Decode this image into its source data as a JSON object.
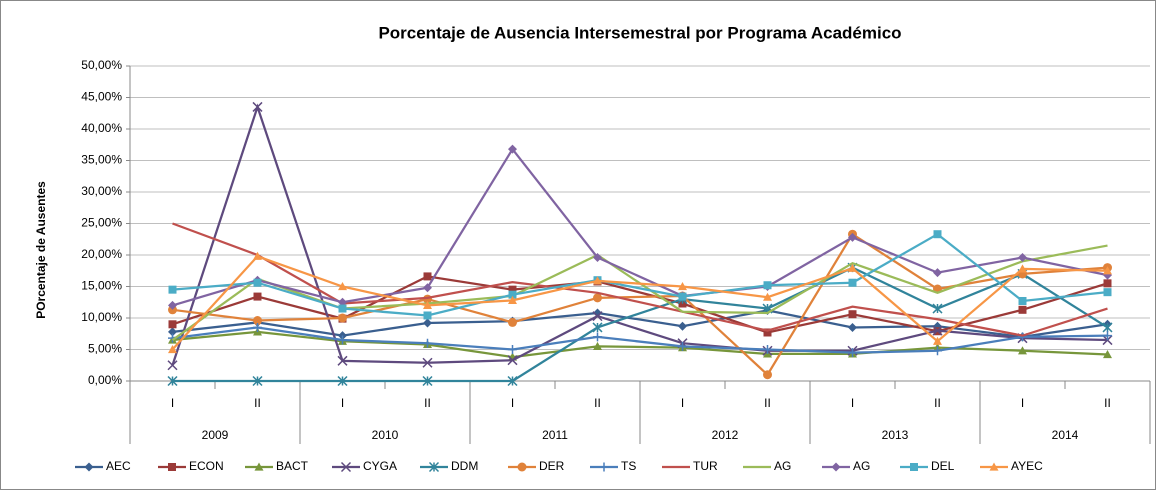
{
  "chart_data": {
    "type": "line",
    "title": "Porcentaje de Ausencia Intersemestral por Programa Académico",
    "y_label": "POrcentaje de Ausentes",
    "categories": [
      "I",
      "II",
      "I",
      "II",
      "I",
      "II",
      "I",
      "II",
      "I",
      "II",
      "I",
      "II"
    ],
    "groups": [
      "2009",
      "2010",
      "2011",
      "2012",
      "2013",
      "2014"
    ],
    "ylim": [
      0,
      50
    ],
    "yticks": [
      {
        "value": 0,
        "label": "0,00%"
      },
      {
        "value": 5,
        "label": "5,00%"
      },
      {
        "value": 10,
        "label": "10,00%"
      },
      {
        "value": 15,
        "label": "15,00%"
      },
      {
        "value": 20,
        "label": "20,00%"
      },
      {
        "value": 25,
        "label": "25,00%"
      },
      {
        "value": 30,
        "label": "30,00%"
      },
      {
        "value": 35,
        "label": "35,00%"
      },
      {
        "value": 40,
        "label": "40,00%"
      },
      {
        "value": 45,
        "label": "45,00%"
      },
      {
        "value": 50,
        "label": "50,00%"
      }
    ],
    "grid": true,
    "legend": "bottom",
    "series": [
      {
        "name": "AEC",
        "color": "#3a5f8f",
        "marker": "diamond",
        "values": [
          7.8,
          9.3,
          7.2,
          9.2,
          9.5,
          10.8,
          8.7,
          11.2,
          8.5,
          8.7,
          7.0,
          9.0
        ]
      },
      {
        "name": "ECON",
        "color": "#9b3a38",
        "marker": "square",
        "values": [
          9.0,
          13.4,
          9.9,
          16.6,
          14.5,
          15.8,
          12.3,
          7.7,
          10.6,
          7.9,
          11.3,
          15.5
        ]
      },
      {
        "name": "BACT",
        "color": "#77963b",
        "marker": "triangle",
        "values": [
          6.5,
          7.8,
          6.3,
          5.8,
          3.8,
          5.5,
          5.3,
          4.3,
          4.3,
          5.3,
          4.8,
          4.2
        ]
      },
      {
        "name": "CYGA",
        "color": "#5e4a7e",
        "marker": "x",
        "values": [
          2.5,
          43.5,
          3.2,
          2.9,
          3.3,
          10.3,
          6.0,
          4.8,
          4.8,
          8.0,
          6.8,
          6.5
        ]
      },
      {
        "name": "DDM",
        "color": "#31849b",
        "marker": "star",
        "values": [
          0,
          0,
          0,
          0,
          0,
          8.5,
          13.0,
          11.5,
          18.0,
          11.5,
          17.0,
          8.5
        ]
      },
      {
        "name": "DER",
        "color": "#e0823a",
        "marker": "circle",
        "values": [
          11.3,
          9.6,
          10.0,
          13.0,
          9.3,
          13.2,
          13.5,
          1.0,
          23.3,
          14.6,
          17.0,
          18.0
        ]
      },
      {
        "name": "TS",
        "color": "#4a7ebb",
        "marker": "plus",
        "values": [
          6.8,
          8.5,
          6.5,
          6.0,
          5.0,
          7.0,
          5.5,
          5.0,
          4.5,
          4.8,
          7.0,
          7.2
        ]
      },
      {
        "name": "TUR",
        "color": "#c0504d",
        "marker": "none",
        "values": [
          25.0,
          20.0,
          12.3,
          13.2,
          15.7,
          14.0,
          11.0,
          8.0,
          11.8,
          9.8,
          7.2,
          11.5
        ]
      },
      {
        "name": "AG",
        "color": "#9bbb59",
        "marker": "none",
        "values": [
          6.5,
          16.2,
          11.5,
          12.3,
          13.5,
          20.0,
          11.0,
          10.8,
          18.7,
          14.0,
          19.0,
          21.5
        ]
      },
      {
        "name": "AG",
        "color": "#8064a2",
        "marker": "diamond",
        "values": [
          12.0,
          16.0,
          12.5,
          14.8,
          36.8,
          19.6,
          13.5,
          15.0,
          22.8,
          17.2,
          19.6,
          16.8
        ]
      },
      {
        "name": "DEL",
        "color": "#4bacc6",
        "marker": "square",
        "values": [
          14.5,
          15.6,
          11.5,
          10.4,
          13.7,
          16.0,
          13.4,
          15.2,
          15.6,
          23.3,
          12.7,
          14.1
        ]
      },
      {
        "name": "AYEC",
        "color": "#f79646",
        "marker": "triangle",
        "values": [
          5.0,
          19.8,
          15.0,
          12.0,
          12.8,
          15.9,
          15.0,
          13.3,
          17.9,
          6.3,
          17.8,
          17.5
        ]
      }
    ]
  }
}
